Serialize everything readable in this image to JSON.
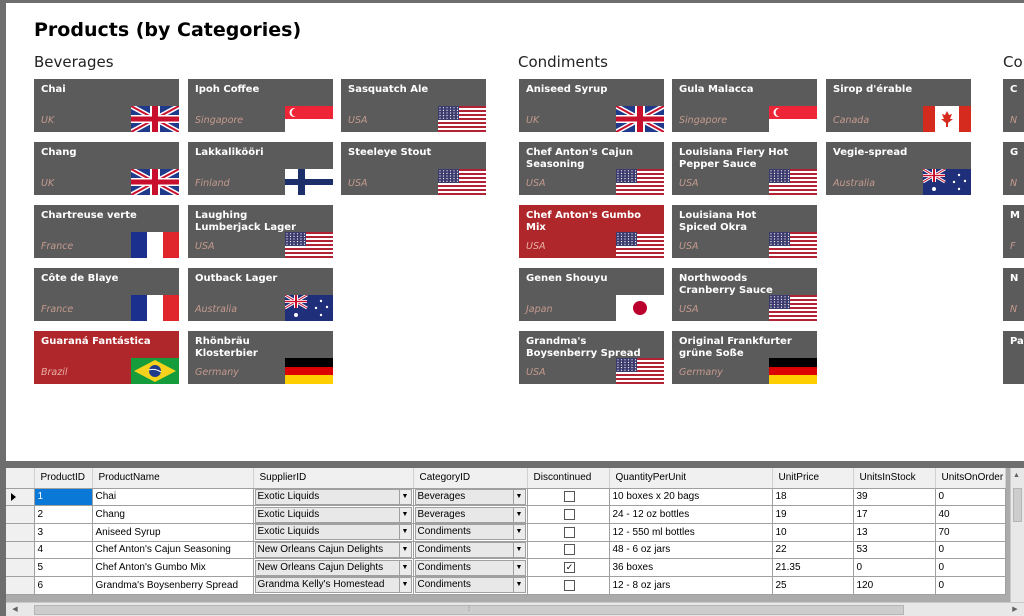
{
  "title": "Products (by Categories)",
  "categories": [
    {
      "name": "Beverages"
    },
    {
      "name": "Condiments"
    },
    {
      "name": "Co"
    }
  ],
  "tiles": [
    {
      "name": "Chai",
      "country": "UK",
      "flag": "uk"
    },
    {
      "name": "Ipoh Coffee",
      "country": "Singapore",
      "flag": "sg"
    },
    {
      "name": "Sasquatch Ale",
      "country": "USA",
      "flag": "us"
    },
    {
      "name": "Chang",
      "country": "UK",
      "flag": "uk"
    },
    {
      "name": "Lakkalikööri",
      "country": "Finland",
      "flag": "fi"
    },
    {
      "name": "Steeleye Stout",
      "country": "USA",
      "flag": "us"
    },
    {
      "name": "Chartreuse verte",
      "country": "France",
      "flag": "fr"
    },
    {
      "name": "Laughing Lumberjack Lager",
      "country": "USA",
      "flag": "us"
    },
    {
      "name": "Côte de Blaye",
      "country": "France",
      "flag": "fr"
    },
    {
      "name": "Outback Lager",
      "country": "Australia",
      "flag": "au"
    },
    {
      "name": "Guaraná Fantástica",
      "country": "Brazil",
      "flag": "br",
      "selected": true
    },
    {
      "name": "Rhönbräu Klosterbier",
      "country": "Germany",
      "flag": "de"
    },
    {
      "name": "Aniseed Syrup",
      "country": "UK",
      "flag": "uk"
    },
    {
      "name": "Gula Malacca",
      "country": "Singapore",
      "flag": "sg"
    },
    {
      "name": "Sirop d'érable",
      "country": "Canada",
      "flag": "ca"
    },
    {
      "name": "Chef Anton's Cajun Seasoning",
      "country": "USA",
      "flag": "us"
    },
    {
      "name": "Louisiana Fiery Hot Pepper Sauce",
      "country": "USA",
      "flag": "us"
    },
    {
      "name": "Vegie-spread",
      "country": "Australia",
      "flag": "au"
    },
    {
      "name": "Chef Anton's Gumbo Mix",
      "country": "USA",
      "flag": "us",
      "selected": true
    },
    {
      "name": "Louisiana Hot Spiced Okra",
      "country": "USA",
      "flag": "us"
    },
    {
      "name": "Genen Shouyu",
      "country": "Japan",
      "flag": "jp"
    },
    {
      "name": "Northwoods Cranberry Sauce",
      "country": "USA",
      "flag": "us"
    },
    {
      "name": "Grandma's Boysenberry Spread",
      "country": "USA",
      "flag": "us"
    },
    {
      "name": "Original Frankfurter grüne Soße",
      "country": "Germany",
      "flag": "de"
    },
    {
      "name": "C",
      "country": "N",
      "flag": "us"
    },
    {
      "name": "G",
      "country": "N",
      "flag": "us"
    },
    {
      "name": "M",
      "country": "F",
      "flag": "us"
    },
    {
      "name": "N",
      "country": "N",
      "flag": "us"
    },
    {
      "name": "Pa",
      "country": "",
      "flag": "us"
    }
  ],
  "grid": {
    "columns": [
      "ProductID",
      "ProductName",
      "SupplierID",
      "CategoryID",
      "Discontinued",
      "QuantityPerUnit",
      "UnitPrice",
      "UnitsInStock",
      "UnitsOnOrder"
    ],
    "rows": [
      {
        "id": "1",
        "name": "Chai",
        "supplier": "Exotic Liquids",
        "category": "Beverages",
        "discontinued": false,
        "qty": "10 boxes x 20 bags",
        "price": "18",
        "stock": "39",
        "order": "0"
      },
      {
        "id": "2",
        "name": "Chang",
        "supplier": "Exotic Liquids",
        "category": "Beverages",
        "discontinued": false,
        "qty": "24 - 12 oz bottles",
        "price": "19",
        "stock": "17",
        "order": "40"
      },
      {
        "id": "3",
        "name": "Aniseed Syrup",
        "supplier": "Exotic Liquids",
        "category": "Condiments",
        "discontinued": false,
        "qty": "12 - 550 ml bottles",
        "price": "10",
        "stock": "13",
        "order": "70"
      },
      {
        "id": "4",
        "name": "Chef Anton's Cajun Seasoning",
        "supplier": "New Orleans Cajun Delights",
        "category": "Condiments",
        "discontinued": false,
        "qty": "48 - 6 oz jars",
        "price": "22",
        "stock": "53",
        "order": "0"
      },
      {
        "id": "5",
        "name": "Chef Anton's Gumbo Mix",
        "supplier": "New Orleans Cajun Delights",
        "category": "Condiments",
        "discontinued": true,
        "qty": "36 boxes",
        "price": "21.35",
        "stock": "0",
        "order": "0"
      },
      {
        "id": "6",
        "name": "Grandma's Boysenberry Spread",
        "supplier": "Grandma Kelly's Homestead",
        "category": "Condiments",
        "discontinued": false,
        "qty": "12 - 8 oz jars",
        "price": "25",
        "stock": "120",
        "order": "0"
      }
    ]
  }
}
